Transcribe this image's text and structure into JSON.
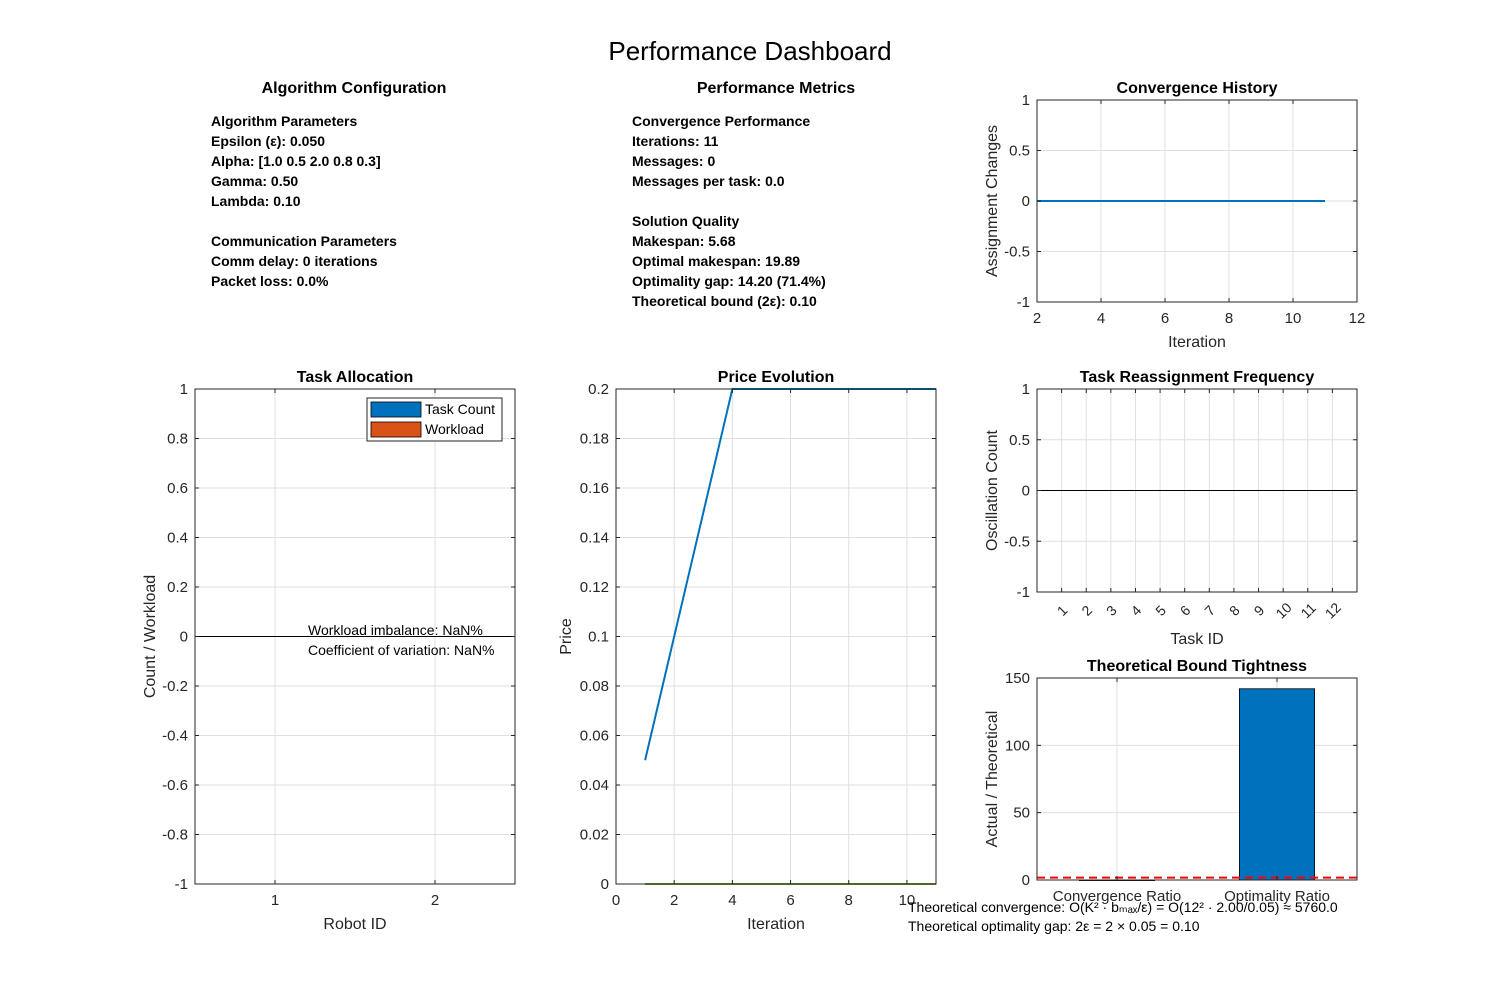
{
  "figure_title": "Performance Dashboard",
  "config_panel": {
    "title": "Algorithm Configuration",
    "lines": [
      "Algorithm Parameters",
      "Epsilon (ε): 0.050",
      "Alpha: [1.0 0.5 2.0 0.8 0.3]",
      "Gamma: 0.50",
      "Lambda: 0.10",
      "",
      "Communication Parameters",
      "Comm delay: 0 iterations",
      "Packet loss: 0.0%"
    ]
  },
  "metrics_panel": {
    "title": "Performance Metrics",
    "lines": [
      "Convergence Performance",
      "Iterations: 11",
      "Messages: 0",
      "Messages per task: 0.0",
      "",
      "Solution Quality",
      "Makespan: 5.68",
      "Optimal makespan: 19.89",
      "Optimality gap: 14.20 (71.4%)",
      "Theoretical bound (2ε): 0.10"
    ]
  },
  "colors": {
    "blue": "#0072BD",
    "orange": "#D95319",
    "green": "#77AC30",
    "red": "#FF0000",
    "grid": "#DFDFDF",
    "axis": "#262626"
  },
  "chart_data": [
    {
      "id": "convergence_history",
      "type": "line",
      "title": "Convergence History",
      "xlabel": "Iteration",
      "ylabel": "Assignment Changes",
      "xlim": [
        2,
        12
      ],
      "ylim": [
        -1,
        1
      ],
      "xticks": [
        2,
        4,
        6,
        8,
        10,
        12
      ],
      "yticks": [
        -1,
        -0.5,
        0,
        0.5,
        1
      ],
      "grid": true,
      "series": [
        {
          "x": [
            2,
            3,
            4,
            5,
            6,
            7,
            8,
            9,
            10,
            11
          ],
          "y": [
            0,
            0,
            0,
            0,
            0,
            0,
            0,
            0,
            0,
            0
          ]
        }
      ]
    },
    {
      "id": "task_allocation",
      "type": "bar",
      "title": "Task Allocation",
      "xlabel": "Robot ID",
      "ylabel": "Count / Workload",
      "categories": [
        "1",
        "2"
      ],
      "xlim": [
        0.5,
        2.5
      ],
      "ylim": [
        -1,
        1
      ],
      "yticks": [
        -1,
        -0.8,
        -0.6,
        -0.4,
        -0.2,
        0,
        0.2,
        0.4,
        0.6,
        0.8,
        1
      ],
      "grid": true,
      "legend": "top-right",
      "series": [
        {
          "name": "Task Count",
          "values": [
            0,
            0
          ]
        },
        {
          "name": "Workload",
          "values": [
            0,
            0
          ]
        }
      ],
      "annotations": [
        "Workload imbalance: NaN%",
        "Coefficient of variation: NaN%"
      ]
    },
    {
      "id": "price_evolution",
      "type": "line",
      "title": "Price Evolution",
      "xlabel": "Iteration",
      "ylabel": "Price",
      "xlim": [
        0,
        11
      ],
      "ylim": [
        0,
        0.2
      ],
      "xticks": [
        0,
        2,
        4,
        6,
        8,
        10
      ],
      "yticks": [
        0,
        0.02,
        0.04,
        0.06,
        0.08,
        0.1,
        0.12,
        0.14,
        0.16,
        0.18,
        0.2
      ],
      "grid": true,
      "series": [
        {
          "x": [
            1,
            4,
            11
          ],
          "y": [
            0.05,
            0.2,
            0.2
          ]
        },
        {
          "x": [
            1,
            11
          ],
          "y": [
            0,
            0
          ]
        },
        {
          "x": [
            1,
            11
          ],
          "y": [
            0,
            0
          ]
        }
      ]
    },
    {
      "id": "reassignment_frequency",
      "type": "bar",
      "title": "Task Reassignment Frequency",
      "xlabel": "Task ID",
      "ylabel": "Oscillation Count",
      "categories": [
        "1",
        "2",
        "3",
        "4",
        "5",
        "6",
        "7",
        "8",
        "9",
        "10",
        "11",
        "12"
      ],
      "values": [
        0,
        0,
        0,
        0,
        0,
        0,
        0,
        0,
        0,
        0,
        0,
        0
      ],
      "xlim": [
        0,
        13
      ],
      "ylim": [
        -1,
        1
      ],
      "yticks": [
        -1,
        -0.5,
        0,
        0.5,
        1
      ],
      "grid": true
    },
    {
      "id": "bound_tightness",
      "type": "bar",
      "title": "Theoretical Bound Tightness",
      "ylabel": "Actual / Theoretical",
      "categories": [
        "Convergence Ratio",
        "Optimality Ratio"
      ],
      "values": [
        0.0019,
        142
      ],
      "xlim": [
        0.5,
        2.5
      ],
      "ylim": [
        0,
        150
      ],
      "yticks": [
        0,
        50,
        100,
        150
      ],
      "grid": true,
      "reference_line": 1,
      "annotations": [
        "Theoretical convergence: O(K² · bₘₐₓ/ε) = O(12² · 2.00/0.05) ≈ 5760.0",
        "Theoretical optimality gap: 2ε = 2 × 0.05 = 0.10"
      ]
    }
  ]
}
